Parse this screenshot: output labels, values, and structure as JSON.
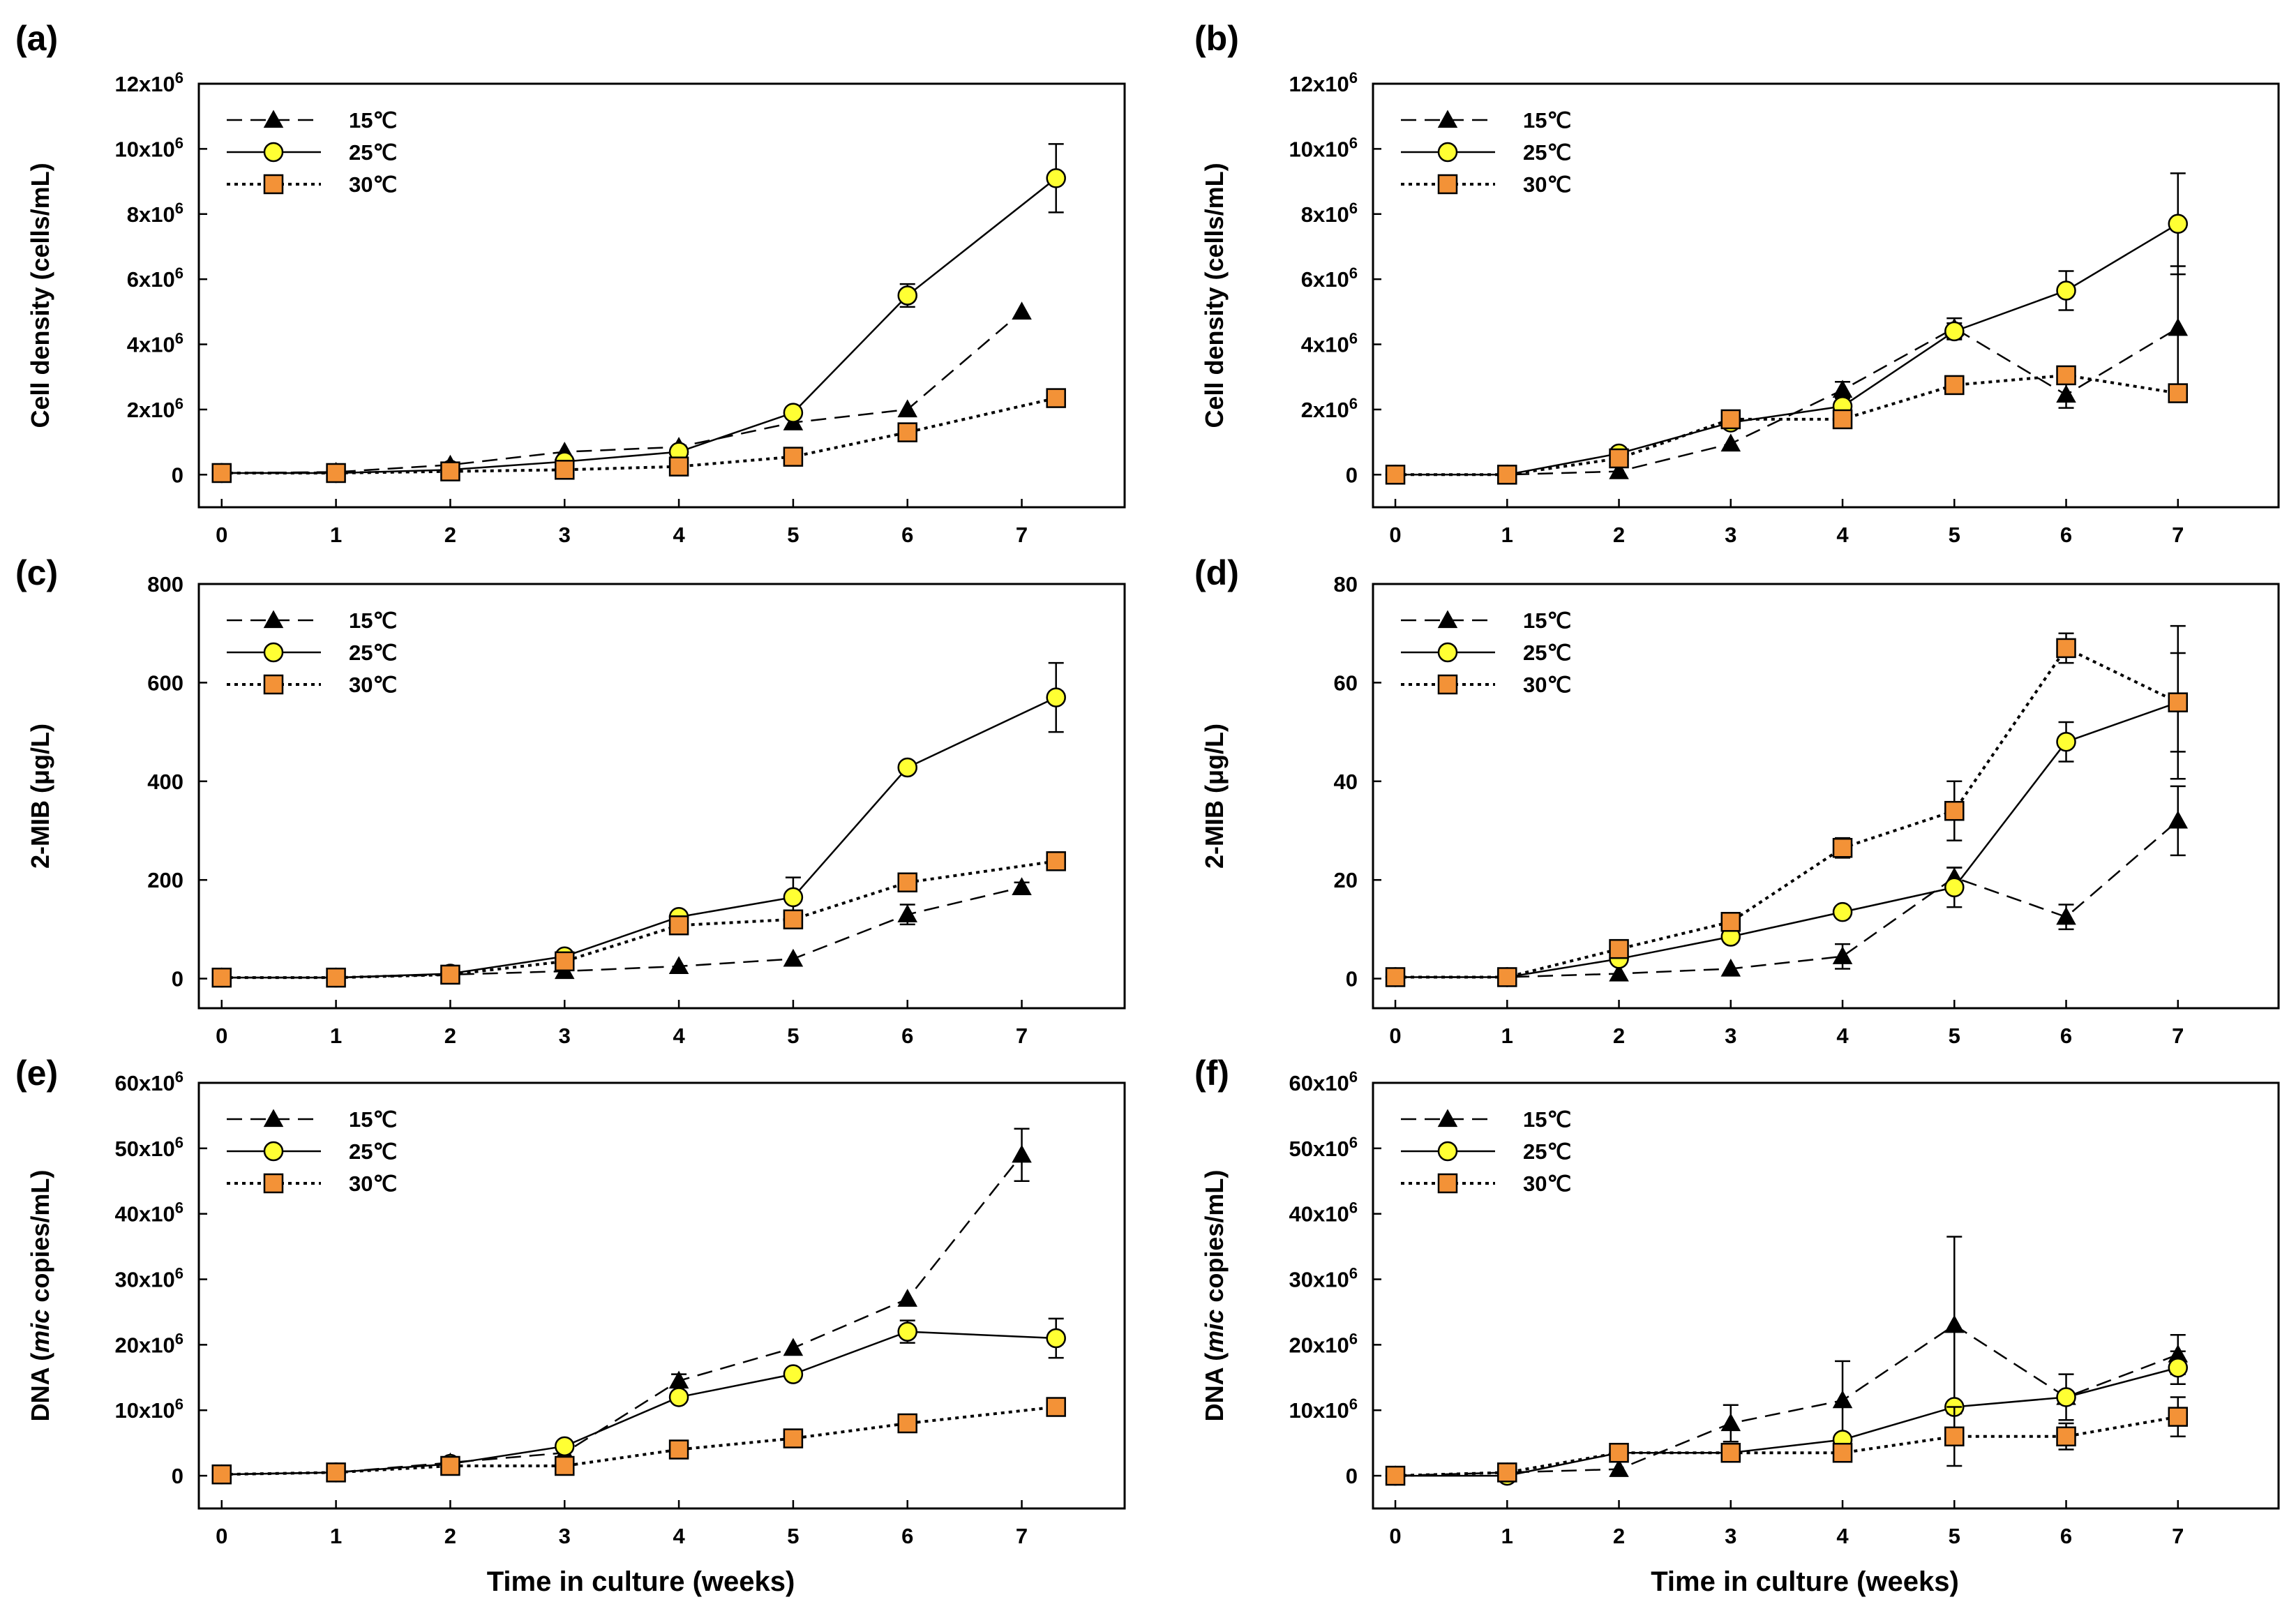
{
  "chart_data": [
    {
      "panel": "(a)",
      "type": "line",
      "title": "",
      "xlabel": "",
      "ylabel": "Cell density (cells/mL)",
      "x": [
        0,
        1,
        2,
        3,
        4,
        5,
        6,
        7
      ],
      "xlim": [
        -0.2,
        7.9
      ],
      "ylim": [
        -1000000,
        12000000
      ],
      "yticks": [
        0,
        2000000,
        4000000,
        6000000,
        8000000,
        10000000,
        12000000
      ],
      "ytick_labels": [
        "0",
        "2x10^6",
        "4x10^6",
        "6x10^6",
        "8x10^6",
        "10x10^6",
        "12x10^6"
      ],
      "legend": "top-left",
      "series": [
        {
          "name": "15℃",
          "style": "dashed",
          "marker": "triangle",
          "color": "#000000",
          "x": [
            0,
            1,
            2,
            3,
            4,
            5,
            6,
            7
          ],
          "values": [
            50000,
            80000,
            300000,
            700000,
            850000,
            1600000,
            2000000,
            5000000
          ],
          "errors": [
            0,
            0,
            0,
            0,
            0,
            0,
            0,
            0
          ]
        },
        {
          "name": "25℃",
          "style": "solid",
          "marker": "circle",
          "color": "#ffff33",
          "x": [
            0,
            1,
            2,
            3,
            4,
            5,
            6,
            7.3
          ],
          "values": [
            50000,
            50000,
            150000,
            400000,
            700000,
            1900000,
            5500000,
            9100000
          ],
          "errors": [
            0,
            0,
            0,
            0,
            0,
            0,
            350000,
            1050000
          ]
        },
        {
          "name": "30℃",
          "style": "dotted",
          "marker": "square",
          "color": "#f39237",
          "x": [
            0,
            1,
            2,
            3,
            4,
            5,
            6,
            7.3
          ],
          "values": [
            50000,
            50000,
            100000,
            150000,
            250000,
            550000,
            1300000,
            2350000
          ],
          "errors": [
            0,
            0,
            0,
            0,
            0,
            0,
            0,
            0
          ]
        }
      ]
    },
    {
      "panel": "(b)",
      "type": "line",
      "title": "",
      "xlabel": "",
      "ylabel": "Cell density (cells/mL)",
      "x": [
        0,
        1,
        2,
        3,
        4,
        5,
        6,
        7
      ],
      "xlim": [
        -0.2,
        7.9
      ],
      "ylim": [
        -1000000,
        12000000
      ],
      "yticks": [
        0,
        2000000,
        4000000,
        6000000,
        8000000,
        10000000,
        12000000
      ],
      "ytick_labels": [
        "0",
        "2x10^6",
        "4x10^6",
        "6x10^6",
        "8x10^6",
        "10x10^6",
        "12x10^6"
      ],
      "legend": "top-left",
      "series": [
        {
          "name": "15℃",
          "style": "dashed",
          "marker": "triangle",
          "color": "#000000",
          "x": [
            0,
            1,
            2,
            3,
            4,
            5,
            6,
            7
          ],
          "values": [
            0,
            0,
            100000,
            950000,
            2600000,
            4500000,
            2450000,
            4500000
          ],
          "errors": [
            0,
            0,
            0,
            0,
            250000,
            300000,
            400000,
            1900000
          ]
        },
        {
          "name": "25℃",
          "style": "solid",
          "marker": "circle",
          "color": "#ffff33",
          "x": [
            0,
            1,
            2,
            3,
            4,
            5,
            6,
            7
          ],
          "values": [
            0,
            0,
            650000,
            1600000,
            2100000,
            4400000,
            5650000,
            7700000
          ],
          "errors": [
            0,
            0,
            0,
            0,
            0,
            250000,
            600000,
            1550000
          ]
        },
        {
          "name": "30℃",
          "style": "dotted",
          "marker": "square",
          "color": "#f39237",
          "x": [
            0,
            1,
            2,
            3,
            4,
            5,
            6,
            7
          ],
          "values": [
            0,
            0,
            500000,
            1700000,
            1700000,
            2750000,
            3050000,
            2500000
          ],
          "errors": [
            0,
            0,
            0,
            0,
            0,
            0,
            0,
            0
          ]
        }
      ]
    },
    {
      "panel": "(c)",
      "type": "line",
      "title": "",
      "xlabel": "",
      "ylabel": "2-MIB (μg/L)",
      "x": [
        0,
        1,
        2,
        3,
        4,
        5,
        6,
        7
      ],
      "xlim": [
        -0.2,
        7.9
      ],
      "ylim": [
        -60,
        800
      ],
      "yticks": [
        0,
        200,
        400,
        600,
        800
      ],
      "ytick_labels": [
        "0",
        "200",
        "400",
        "600",
        "800"
      ],
      "legend": "top-left",
      "series": [
        {
          "name": "15℃",
          "style": "dashed",
          "marker": "triangle",
          "color": "#000000",
          "x": [
            0,
            1,
            2,
            3,
            4,
            5,
            6,
            7
          ],
          "values": [
            2,
            2,
            8,
            15,
            25,
            40,
            130,
            185
          ],
          "errors": [
            0,
            0,
            0,
            0,
            0,
            0,
            20,
            10
          ]
        },
        {
          "name": "25℃",
          "style": "solid",
          "marker": "circle",
          "color": "#ffff33",
          "x": [
            0,
            1,
            2,
            3,
            4,
            5,
            6,
            7.3
          ],
          "values": [
            2,
            2,
            10,
            45,
            125,
            165,
            428,
            570
          ],
          "errors": [
            0,
            0,
            0,
            0,
            0,
            40,
            0,
            70
          ]
        },
        {
          "name": "30℃",
          "style": "dotted",
          "marker": "square",
          "color": "#f39237",
          "x": [
            0,
            1,
            2,
            3,
            4,
            5,
            6,
            7.3
          ],
          "values": [
            2,
            2,
            8,
            35,
            108,
            120,
            195,
            238
          ],
          "errors": [
            0,
            0,
            0,
            0,
            10,
            10,
            12,
            15
          ]
        }
      ]
    },
    {
      "panel": "(d)",
      "type": "line",
      "title": "",
      "xlabel": "",
      "ylabel": "2-MIB (μg/L)",
      "x": [
        0,
        1,
        2,
        3,
        4,
        5,
        6,
        7
      ],
      "xlim": [
        -0.2,
        7.9
      ],
      "ylim": [
        -6,
        80
      ],
      "yticks": [
        0,
        20,
        40,
        60,
        80
      ],
      "ytick_labels": [
        "0",
        "20",
        "40",
        "60",
        "80"
      ],
      "legend": "top-left",
      "series": [
        {
          "name": "15℃",
          "style": "dashed",
          "marker": "triangle",
          "color": "#000000",
          "x": [
            0,
            1,
            2,
            3,
            4,
            5,
            6,
            7
          ],
          "values": [
            0.3,
            0.3,
            1,
            2,
            4.5,
            20.5,
            12.5,
            32
          ],
          "errors": [
            0,
            0,
            0,
            0,
            2.5,
            2,
            2.5,
            7
          ]
        },
        {
          "name": "25℃",
          "style": "solid",
          "marker": "circle",
          "color": "#ffff33",
          "x": [
            0,
            1,
            2,
            3,
            4,
            5,
            6,
            7
          ],
          "values": [
            0.3,
            0.3,
            4,
            8.5,
            13.5,
            18.5,
            48,
            56
          ],
          "errors": [
            0,
            0,
            0,
            0,
            0,
            4,
            4,
            15.5
          ]
        },
        {
          "name": "30℃",
          "style": "dotted",
          "marker": "square",
          "color": "#f39237",
          "x": [
            0,
            1,
            2,
            3,
            4,
            5,
            6,
            7
          ],
          "values": [
            0.3,
            0.3,
            6,
            11.5,
            26.5,
            34,
            67,
            56
          ],
          "errors": [
            0,
            0,
            0,
            0,
            2,
            6,
            3,
            10
          ]
        }
      ]
    },
    {
      "panel": "(e)",
      "type": "line",
      "title": "",
      "xlabel": "Time in culture (weeks)",
      "ylabel": "DNA (mic copies/mL)",
      "x": [
        0,
        1,
        2,
        3,
        4,
        5,
        6,
        7
      ],
      "xlim": [
        -0.2,
        7.9
      ],
      "ylim": [
        -5000000,
        60000000
      ],
      "yticks": [
        0,
        10000000,
        20000000,
        30000000,
        40000000,
        50000000,
        60000000
      ],
      "ytick_labels": [
        "0",
        "10x10^6",
        "20x10^6",
        "30x10^6",
        "40x10^6",
        "50x10^6",
        "60x10^6"
      ],
      "legend": "top-left",
      "series": [
        {
          "name": "15℃",
          "style": "dashed",
          "marker": "triangle",
          "color": "#000000",
          "x": [
            0,
            1,
            2,
            3,
            4,
            5,
            6,
            7
          ],
          "values": [
            200000,
            500000,
            2000000,
            3500000,
            14500000,
            19500000,
            27000000,
            49000000
          ],
          "errors": [
            0,
            0,
            0,
            0,
            1000000,
            0,
            0,
            4000000
          ]
        },
        {
          "name": "25℃",
          "style": "solid",
          "marker": "circle",
          "color": "#ffff33",
          "x": [
            0,
            1,
            2,
            3,
            4,
            5,
            6,
            7.3
          ],
          "values": [
            200000,
            500000,
            1800000,
            4500000,
            12000000,
            15500000,
            22000000,
            21000000
          ],
          "errors": [
            0,
            0,
            0,
            0,
            0,
            0,
            1700000,
            3000000
          ]
        },
        {
          "name": "30℃",
          "style": "dotted",
          "marker": "square",
          "color": "#f39237",
          "x": [
            0,
            1,
            2,
            3,
            4,
            5,
            6,
            7.3
          ],
          "values": [
            200000,
            500000,
            1500000,
            1500000,
            4000000,
            5700000,
            8000000,
            10500000
          ],
          "errors": [
            0,
            0,
            0,
            0,
            0,
            0,
            0,
            0
          ]
        }
      ]
    },
    {
      "panel": "(f)",
      "type": "line",
      "title": "",
      "xlabel": "Time in culture (weeks)",
      "ylabel": "DNA (mic copies/mL)",
      "x": [
        0,
        1,
        2,
        3,
        4,
        5,
        6,
        7
      ],
      "xlim": [
        -0.2,
        7.9
      ],
      "ylim": [
        -5000000,
        60000000
      ],
      "yticks": [
        0,
        10000000,
        20000000,
        30000000,
        40000000,
        50000000,
        60000000
      ],
      "ytick_labels": [
        "0",
        "10x10^6",
        "20x10^6",
        "30x10^6",
        "40x10^6",
        "50x10^6",
        "60x10^6"
      ],
      "legend": "top-left",
      "series": [
        {
          "name": "15℃",
          "style": "dashed",
          "marker": "triangle",
          "color": "#000000",
          "x": [
            0,
            1,
            2,
            3,
            4,
            5,
            6,
            7
          ],
          "values": [
            0,
            500000,
            1000000,
            8000000,
            11500000,
            23000000,
            12000000,
            18500000
          ],
          "errors": [
            0,
            0,
            0,
            2800000,
            6000000,
            13500000,
            3500000,
            3000000
          ]
        },
        {
          "name": "25℃",
          "style": "solid",
          "marker": "circle",
          "color": "#ffff33",
          "x": [
            0,
            1,
            2,
            3,
            4,
            5,
            6,
            7
          ],
          "values": [
            0,
            0,
            3500000,
            3500000,
            5500000,
            10500000,
            12000000,
            16500000
          ],
          "errors": [
            0,
            0,
            0,
            0,
            0,
            0,
            0,
            2500000
          ]
        },
        {
          "name": "30℃",
          "style": "dotted",
          "marker": "square",
          "color": "#f39237",
          "x": [
            0,
            1,
            2,
            3,
            4,
            5,
            6,
            7
          ],
          "values": [
            0,
            500000,
            3500000,
            3500000,
            3500000,
            6000000,
            6000000,
            9000000
          ],
          "errors": [
            0,
            0,
            0,
            0,
            0,
            4500000,
            2000000,
            3000000
          ]
        }
      ]
    }
  ]
}
